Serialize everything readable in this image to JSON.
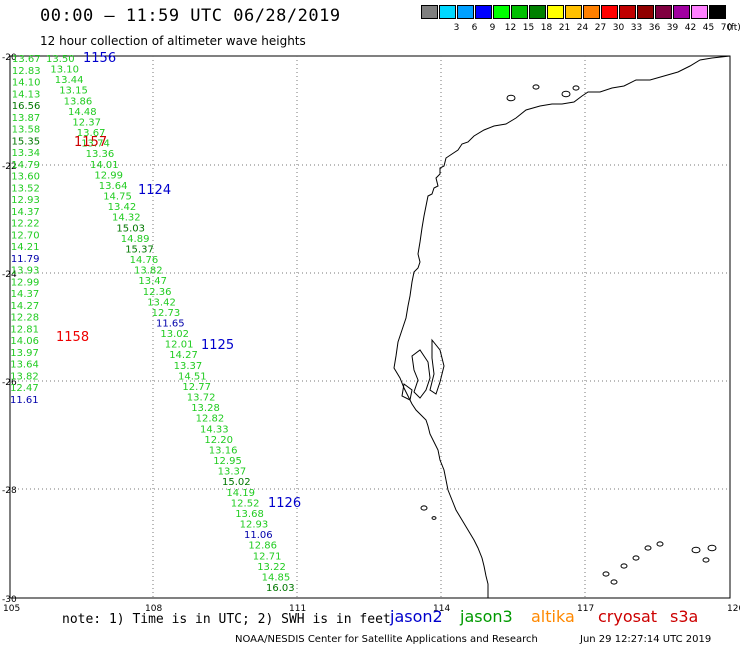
{
  "header": {
    "title": "00:00 – 11:59 UTC 06/28/2019",
    "subtitle": "12 hour collection of altimeter wave heights"
  },
  "scale": {
    "colors": [
      "#7f7f7f",
      "#00d8ff",
      "#00a0ff",
      "#0000ff",
      "#00ff00",
      "#00c000",
      "#008000",
      "#ffff00",
      "#ffc000",
      "#ff8000",
      "#ff0000",
      "#c00000",
      "#900000",
      "#800040",
      "#a000a0",
      "#ff80ff",
      "#000000"
    ],
    "labels": [
      "",
      "3",
      "6",
      "9",
      "12",
      "15",
      "18",
      "21",
      "24",
      "27",
      "30",
      "33",
      "36",
      "39",
      "42",
      "45",
      "70"
    ],
    "unit": "(ft)"
  },
  "axes": {
    "lon_labels": [
      "105",
      "108",
      "111",
      "114",
      "117",
      "120"
    ],
    "lat_labels": [
      "-20",
      "-22",
      "-24",
      "-26",
      "-28",
      "-30"
    ]
  },
  "passes": [
    {
      "id": "1156",
      "color": "#0000cc"
    },
    {
      "id": "1157",
      "color": "#cc0000"
    },
    {
      "id": "1124",
      "color": "#0000cc"
    },
    {
      "id": "1158",
      "color": "#ee0000"
    },
    {
      "id": "1125",
      "color": "#0000cc"
    },
    {
      "id": "1126",
      "color": "#0000cc"
    }
  ],
  "track_left": [
    [
      "13.67",
      "#22cc22"
    ],
    [
      "12.83",
      "#22cc22"
    ],
    [
      "14.10",
      "#22cc22"
    ],
    [
      "14.13",
      "#22cc22"
    ],
    [
      "16.56",
      "#007700"
    ],
    [
      "13.87",
      "#22cc22"
    ],
    [
      "13.58",
      "#22cc22"
    ],
    [
      "15.35",
      "#007700"
    ],
    [
      "13.34",
      "#22cc22"
    ],
    [
      "14.79",
      "#22cc22"
    ],
    [
      "13.60",
      "#22cc22"
    ],
    [
      "13.52",
      "#22cc22"
    ],
    [
      "12.93",
      "#22cc22"
    ],
    [
      "14.37",
      "#22cc22"
    ],
    [
      "12.22",
      "#22cc22"
    ],
    [
      "12.70",
      "#22cc22"
    ],
    [
      "14.21",
      "#22cc22"
    ],
    [
      "11.79",
      "#0000aa"
    ],
    [
      "13.93",
      "#22cc22"
    ],
    [
      "12.99",
      "#22cc22"
    ],
    [
      "14.37",
      "#22cc22"
    ],
    [
      "14.27",
      "#22cc22"
    ],
    [
      "12.28",
      "#22cc22"
    ],
    [
      "12.81",
      "#22cc22"
    ],
    [
      "14.06",
      "#22cc22"
    ],
    [
      "13.97",
      "#22cc22"
    ],
    [
      "13.64",
      "#22cc22"
    ],
    [
      "13.82",
      "#22cc22"
    ],
    [
      "12.47",
      "#22cc22"
    ],
    [
      "11.61",
      "#0000aa"
    ]
  ],
  "track_right": [
    [
      "13.50",
      "#22cc22"
    ],
    [
      "13.10",
      "#22cc22"
    ],
    [
      "13.44",
      "#22cc22"
    ],
    [
      "13.15",
      "#22cc22"
    ],
    [
      "13.86",
      "#22cc22"
    ],
    [
      "14.48",
      "#22cc22"
    ],
    [
      "12.37",
      "#22cc22"
    ],
    [
      "13.67",
      "#22cc22"
    ],
    [
      "13.74",
      "#22cc22"
    ],
    [
      "13.36",
      "#22cc22"
    ],
    [
      "14.01",
      "#22cc22"
    ],
    [
      "12.99",
      "#22cc22"
    ],
    [
      "13.64",
      "#22cc22"
    ],
    [
      "14.75",
      "#22cc22"
    ],
    [
      "13.42",
      "#22cc22"
    ],
    [
      "14.32",
      "#22cc22"
    ],
    [
      "15.03",
      "#007700"
    ],
    [
      "14.89",
      "#22cc22"
    ],
    [
      "15.37",
      "#007700"
    ],
    [
      "14.76",
      "#22cc22"
    ],
    [
      "13.82",
      "#22cc22"
    ],
    [
      "13.47",
      "#22cc22"
    ],
    [
      "12.36",
      "#22cc22"
    ],
    [
      "13.42",
      "#22cc22"
    ],
    [
      "12.73",
      "#22cc22"
    ],
    [
      "11.65",
      "#0000aa"
    ],
    [
      "13.02",
      "#22cc22"
    ],
    [
      "12.01",
      "#22cc22"
    ],
    [
      "14.27",
      "#22cc22"
    ],
    [
      "13.37",
      "#22cc22"
    ],
    [
      "14.51",
      "#22cc22"
    ],
    [
      "12.77",
      "#22cc22"
    ],
    [
      "13.72",
      "#22cc22"
    ],
    [
      "13.28",
      "#22cc22"
    ],
    [
      "12.82",
      "#22cc22"
    ],
    [
      "14.33",
      "#22cc22"
    ],
    [
      "12.20",
      "#22cc22"
    ],
    [
      "13.16",
      "#22cc22"
    ],
    [
      "12.95",
      "#22cc22"
    ],
    [
      "13.37",
      "#22cc22"
    ],
    [
      "15.02",
      "#007700"
    ],
    [
      "14.19",
      "#22cc22"
    ],
    [
      "12.52",
      "#22cc22"
    ],
    [
      "13.68",
      "#22cc22"
    ],
    [
      "12.93",
      "#22cc22"
    ],
    [
      "11.06",
      "#0000aa"
    ],
    [
      "12.86",
      "#22cc22"
    ],
    [
      "12.71",
      "#22cc22"
    ],
    [
      "13.22",
      "#22cc22"
    ],
    [
      "14.85",
      "#22cc22"
    ],
    [
      "16.03",
      "#007700"
    ]
  ],
  "footer": {
    "note": "note: 1) Time is in UTC; 2) SWH is in feet",
    "satellites": [
      {
        "name": "jason2",
        "color": "#0000cc"
      },
      {
        "name": "jason3",
        "color": "#009900"
      },
      {
        "name": "altika",
        "color": "#ff8800"
      },
      {
        "name": "cryosat",
        "color": "#cc0000"
      },
      {
        "name": "s3a",
        "color": "#cc0000"
      }
    ],
    "credit": "NOAA/NESDIS Center for Satellite Applications and Research",
    "timestamp": "Jun 29 12:27:14 UTC 2019"
  }
}
